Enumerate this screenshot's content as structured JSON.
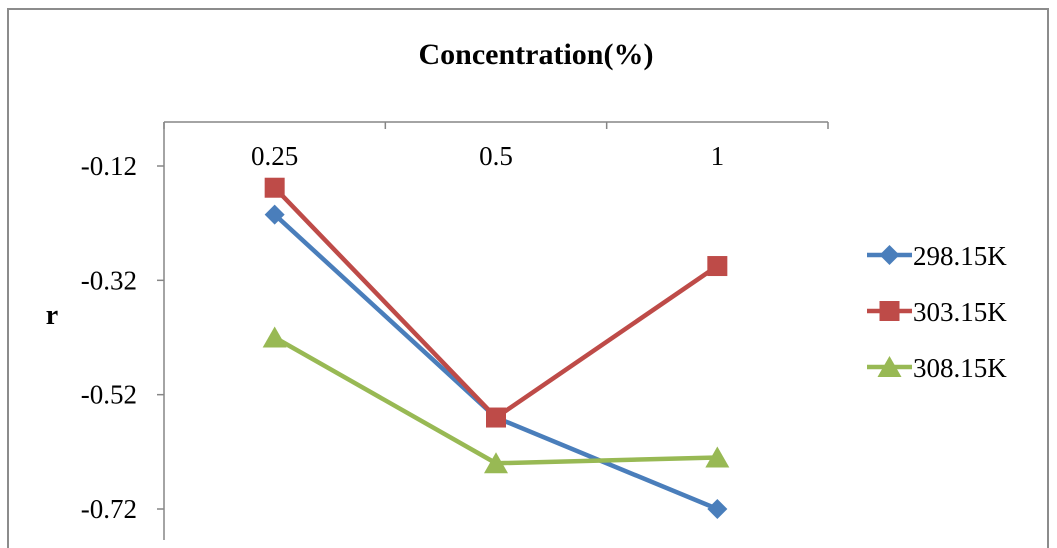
{
  "chart_data": {
    "type": "line",
    "title": "Concentration(%)",
    "xlabel": "",
    "ylabel": "r",
    "categories": [
      "0.25",
      "0.5",
      "1"
    ],
    "yticks": [
      "-0.12",
      "-0.32",
      "-0.52",
      "-0.72"
    ],
    "ylim": [
      -0.72,
      -0.12
    ],
    "x_axis_position": "top",
    "grid": false,
    "legend_position": "right",
    "series": [
      {
        "name": "298.15K",
        "values": [
          -0.205,
          -0.56,
          -0.72
        ],
        "color": "#4a7ebb",
        "marker": "diamond"
      },
      {
        "name": "303.15K",
        "values": [
          -0.158,
          -0.56,
          -0.295
        ],
        "color": "#be4b48",
        "marker": "square"
      },
      {
        "name": "308.15K",
        "values": [
          -0.42,
          -0.64,
          -0.63
        ],
        "color": "#98b954",
        "marker": "triangle"
      }
    ]
  }
}
